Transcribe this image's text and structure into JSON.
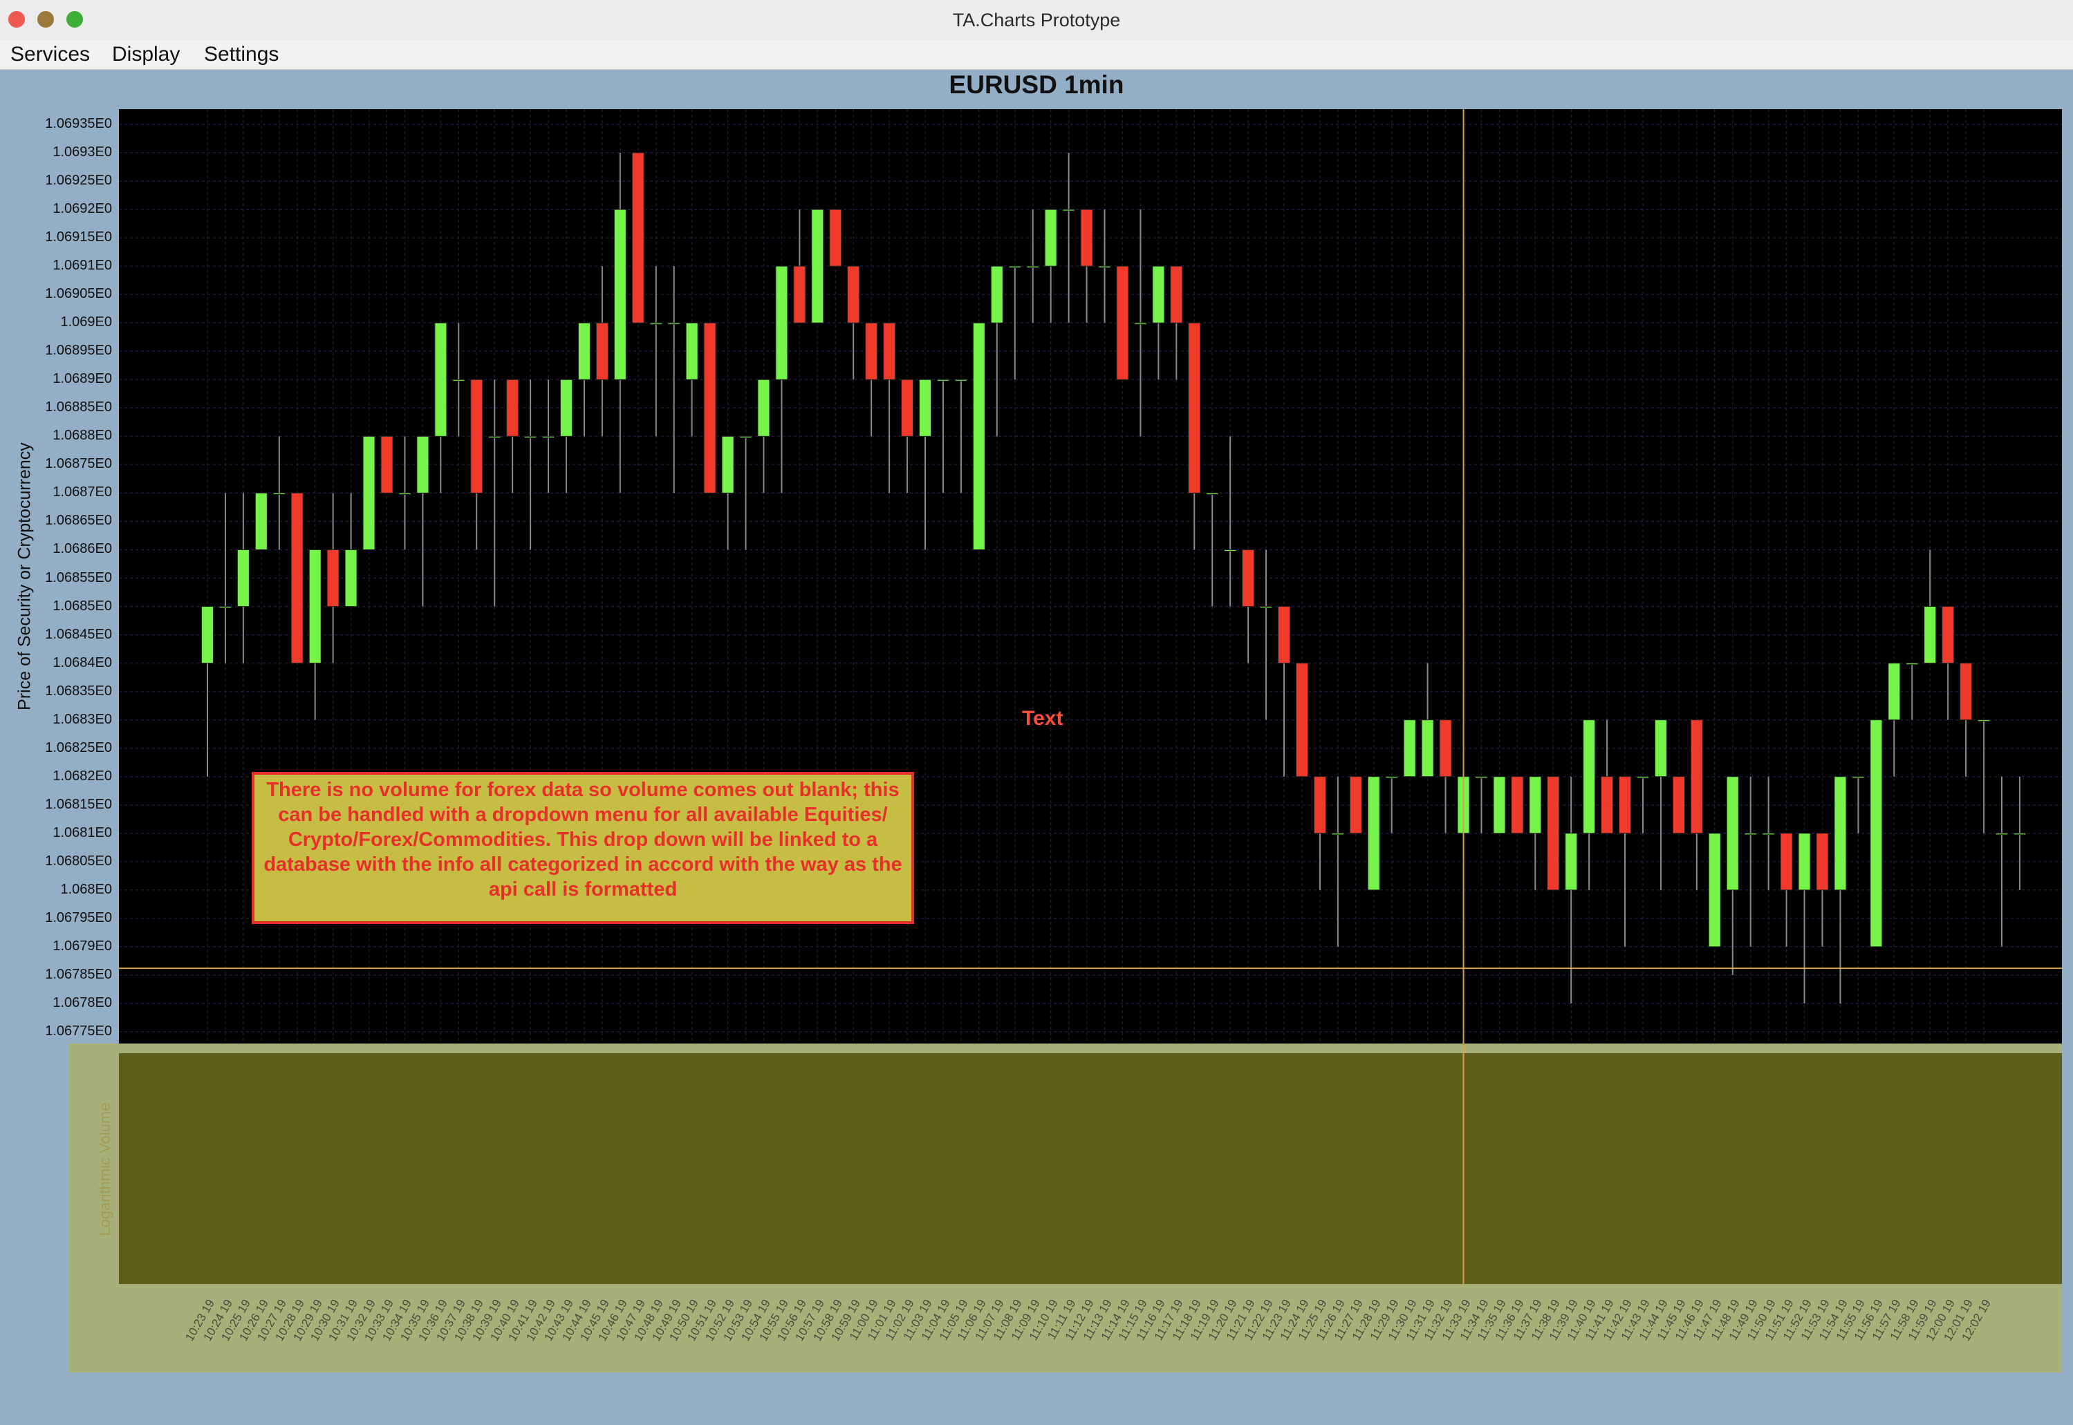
{
  "window": {
    "title": "TA.Charts Prototype"
  },
  "menu": {
    "items": [
      "Services",
      "Display",
      "Settings"
    ]
  },
  "chart_title": "EURUSD 1min",
  "annotation_text": "Text",
  "note": "There is no volume for forex data so volume comes out blank; this can be handled with a dropdown menu for all available Equities/ Crypto/Forex/Commodities. This drop down will be linked to a database with the info all categorized in accord with the way as the api call is formatted",
  "colors": {
    "up": "#77f44a",
    "down": "#f03b2c",
    "crosshair": "#d6a24a",
    "plot_bg": "#000000",
    "volume_bg": "#5e5d1a"
  },
  "chart_data": {
    "type": "candlestick",
    "title": "EURUSD 1min",
    "ylabel": "Price of Security or Cryptocurrency",
    "volume_label": "Logarithmic Volume",
    "ylim": [
      1.06775,
      1.06935
    ],
    "ytick_labels": [
      "1.06935E0",
      "1.0693E0",
      "1.06925E0",
      "1.0692E0",
      "1.06915E0",
      "1.0691E0",
      "1.06905E0",
      "1.069E0",
      "1.06895E0",
      "1.0689E0",
      "1.06885E0",
      "1.0688E0",
      "1.06875E0",
      "1.0687E0",
      "1.06865E0",
      "1.0686E0",
      "1.06855E0",
      "1.0685E0",
      "1.06845E0",
      "1.0684E0",
      "1.06835E0",
      "1.0683E0",
      "1.06825E0",
      "1.0682E0",
      "1.06815E0",
      "1.0681E0",
      "1.06805E0",
      "1.068E0",
      "1.06795E0",
      "1.0679E0",
      "1.06785E0",
      "1.0678E0",
      "1.06775E0"
    ],
    "ytick_values": [
      1.06935,
      1.0693,
      1.06925,
      1.0692,
      1.06915,
      1.0691,
      1.06905,
      1.069,
      1.06895,
      1.0689,
      1.06885,
      1.0688,
      1.06875,
      1.0687,
      1.06865,
      1.0686,
      1.06855,
      1.0685,
      1.06845,
      1.0684,
      1.06835,
      1.0683,
      1.06825,
      1.0682,
      1.06815,
      1.0681,
      1.06805,
      1.068,
      1.06795,
      1.0679,
      1.06785,
      1.0678,
      1.06775
    ],
    "xtick_labels": [
      "10:23 19",
      "10:24 19",
      "10:25 19",
      "10:26 19",
      "10:27 19",
      "10:28 19",
      "10:29 19",
      "10:30 19",
      "10:31 19",
      "10:32 19",
      "10:33 19",
      "10:34 19",
      "10:35 19",
      "10:36 19",
      "10:37 19",
      "10:38 19",
      "10:39 19",
      "10:40 19",
      "10:41 19",
      "10:42 19",
      "10:43 19",
      "10:44 19",
      "10:45 19",
      "10:46 19",
      "10:47 19",
      "10:48 19",
      "10:49 19",
      "10:50 19",
      "10:51 19",
      "10:52 19",
      "10:53 19",
      "10:54 19",
      "10:55 19",
      "10:56 19",
      "10:57 19",
      "10:58 19",
      "10:59 19",
      "11:00 19",
      "11:01 19",
      "11:02 19",
      "11:03 19",
      "11:04 19",
      "11:05 19",
      "11:06 19",
      "11:07 19",
      "11:08 19",
      "11:09 19",
      "11:10 19",
      "11:11 19",
      "11:12 19",
      "11:13 19",
      "11:14 19",
      "11:15 19",
      "11:16 19",
      "11:17 19",
      "11:18 19",
      "11:19 19",
      "11:20 19",
      "11:21 19",
      "11:22 19",
      "11:23 19",
      "11:24 19",
      "11:25 19",
      "11:26 19",
      "11:27 19",
      "11:28 19",
      "11:29 19",
      "11:30 19",
      "11:31 19",
      "11:32 19",
      "11:33 19",
      "11:34 19",
      "11:35 19",
      "11:36 19",
      "11:37 19",
      "11:38 19",
      "11:39 19",
      "11:40 19",
      "11:41 19",
      "11:42 19",
      "11:43 19",
      "11:44 19",
      "11:45 19",
      "11:46 19",
      "11:47 19",
      "11:48 19",
      "11:49 19",
      "11:50 19",
      "11:51 19",
      "11:52 19",
      "11:53 19",
      "11:54 19",
      "11:55 19",
      "11:56 19",
      "11:57 19",
      "11:58 19",
      "11:59 19",
      "12:00 19",
      "12:01 19",
      "12:02 19"
    ],
    "candles": [
      {
        "o": 1.0684,
        "h": 1.0685,
        "l": 1.0682,
        "c": 1.0685
      },
      {
        "o": 1.0685,
        "h": 1.0687,
        "l": 1.0684,
        "c": 1.0685
      },
      {
        "o": 1.0685,
        "h": 1.0687,
        "l": 1.0684,
        "c": 1.0686
      },
      {
        "o": 1.0686,
        "h": 1.0687,
        "l": 1.0686,
        "c": 1.0687
      },
      {
        "o": 1.0687,
        "h": 1.0688,
        "l": 1.0686,
        "c": 1.0687
      },
      {
        "o": 1.0687,
        "h": 1.0687,
        "l": 1.0684,
        "c": 1.0684
      },
      {
        "o": 1.0684,
        "h": 1.0686,
        "l": 1.0683,
        "c": 1.0686
      },
      {
        "o": 1.0686,
        "h": 1.0687,
        "l": 1.0684,
        "c": 1.0685
      },
      {
        "o": 1.0685,
        "h": 1.0687,
        "l": 1.0685,
        "c": 1.0686
      },
      {
        "o": 1.0686,
        "h": 1.0688,
        "l": 1.0686,
        "c": 1.0688
      },
      {
        "o": 1.0688,
        "h": 1.0688,
        "l": 1.0687,
        "c": 1.0687
      },
      {
        "o": 1.0687,
        "h": 1.0688,
        "l": 1.0686,
        "c": 1.0687
      },
      {
        "o": 1.0687,
        "h": 1.0688,
        "l": 1.0685,
        "c": 1.0688
      },
      {
        "o": 1.0688,
        "h": 1.069,
        "l": 1.0687,
        "c": 1.069
      },
      {
        "o": 1.0689,
        "h": 1.069,
        "l": 1.0688,
        "c": 1.0689
      },
      {
        "o": 1.0689,
        "h": 1.0689,
        "l": 1.0686,
        "c": 1.0687
      },
      {
        "o": 1.0688,
        "h": 1.0689,
        "l": 1.0685,
        "c": 1.0688
      },
      {
        "o": 1.0689,
        "h": 1.0689,
        "l": 1.0687,
        "c": 1.0688
      },
      {
        "o": 1.0688,
        "h": 1.0689,
        "l": 1.0686,
        "c": 1.0688
      },
      {
        "o": 1.0688,
        "h": 1.0689,
        "l": 1.0687,
        "c": 1.0688
      },
      {
        "o": 1.0688,
        "h": 1.0689,
        "l": 1.0687,
        "c": 1.0689
      },
      {
        "o": 1.0689,
        "h": 1.069,
        "l": 1.0688,
        "c": 1.069
      },
      {
        "o": 1.069,
        "h": 1.0691,
        "l": 1.0688,
        "c": 1.0689
      },
      {
        "o": 1.0689,
        "h": 1.0693,
        "l": 1.0687,
        "c": 1.0692
      },
      {
        "o": 1.0693,
        "h": 1.0693,
        "l": 1.069,
        "c": 1.069
      },
      {
        "o": 1.069,
        "h": 1.0691,
        "l": 1.0688,
        "c": 1.069
      },
      {
        "o": 1.069,
        "h": 1.0691,
        "l": 1.0687,
        "c": 1.069
      },
      {
        "o": 1.0689,
        "h": 1.069,
        "l": 1.0688,
        "c": 1.069
      },
      {
        "o": 1.069,
        "h": 1.069,
        "l": 1.0687,
        "c": 1.0687
      },
      {
        "o": 1.0687,
        "h": 1.0688,
        "l": 1.0686,
        "c": 1.0688
      },
      {
        "o": 1.0688,
        "h": 1.0688,
        "l": 1.0686,
        "c": 1.0688
      },
      {
        "o": 1.0688,
        "h": 1.0689,
        "l": 1.0687,
        "c": 1.0689
      },
      {
        "o": 1.0689,
        "h": 1.0691,
        "l": 1.0687,
        "c": 1.0691
      },
      {
        "o": 1.0691,
        "h": 1.0692,
        "l": 1.069,
        "c": 1.069
      },
      {
        "o": 1.069,
        "h": 1.0692,
        "l": 1.069,
        "c": 1.0692
      },
      {
        "o": 1.0692,
        "h": 1.0692,
        "l": 1.0691,
        "c": 1.0691
      },
      {
        "o": 1.0691,
        "h": 1.0691,
        "l": 1.0689,
        "c": 1.069
      },
      {
        "o": 1.069,
        "h": 1.069,
        "l": 1.0688,
        "c": 1.0689
      },
      {
        "o": 1.069,
        "h": 1.069,
        "l": 1.0687,
        "c": 1.0689
      },
      {
        "o": 1.0689,
        "h": 1.0689,
        "l": 1.0687,
        "c": 1.0688
      },
      {
        "o": 1.0688,
        "h": 1.0689,
        "l": 1.0686,
        "c": 1.0689
      },
      {
        "o": 1.0689,
        "h": 1.0689,
        "l": 1.0687,
        "c": 1.0689
      },
      {
        "o": 1.0689,
        "h": 1.0689,
        "l": 1.0687,
        "c": 1.0689
      },
      {
        "o": 1.0686,
        "h": 1.069,
        "l": 1.0686,
        "c": 1.069
      },
      {
        "o": 1.069,
        "h": 1.0691,
        "l": 1.0688,
        "c": 1.0691
      },
      {
        "o": 1.0691,
        "h": 1.0691,
        "l": 1.0689,
        "c": 1.0691
      },
      {
        "o": 1.0691,
        "h": 1.0692,
        "l": 1.069,
        "c": 1.0691
      },
      {
        "o": 1.0691,
        "h": 1.0692,
        "l": 1.069,
        "c": 1.0692
      },
      {
        "o": 1.0692,
        "h": 1.0693,
        "l": 1.069,
        "c": 1.0692
      },
      {
        "o": 1.0692,
        "h": 1.0692,
        "l": 1.069,
        "c": 1.0691
      },
      {
        "o": 1.0691,
        "h": 1.0692,
        "l": 1.069,
        "c": 1.0691
      },
      {
        "o": 1.0691,
        "h": 1.0691,
        "l": 1.0689,
        "c": 1.0689
      },
      {
        "o": 1.069,
        "h": 1.0692,
        "l": 1.0688,
        "c": 1.069
      },
      {
        "o": 1.069,
        "h": 1.0691,
        "l": 1.0689,
        "c": 1.0691
      },
      {
        "o": 1.0691,
        "h": 1.0691,
        "l": 1.0689,
        "c": 1.069
      },
      {
        "o": 1.069,
        "h": 1.069,
        "l": 1.0686,
        "c": 1.0687
      },
      {
        "o": 1.0687,
        "h": 1.0687,
        "l": 1.0685,
        "c": 1.0687
      },
      {
        "o": 1.0686,
        "h": 1.0688,
        "l": 1.0685,
        "c": 1.0686
      },
      {
        "o": 1.0686,
        "h": 1.0686,
        "l": 1.0684,
        "c": 1.0685
      },
      {
        "o": 1.0685,
        "h": 1.0686,
        "l": 1.0683,
        "c": 1.0685
      },
      {
        "o": 1.0685,
        "h": 1.0685,
        "l": 1.0682,
        "c": 1.0684
      },
      {
        "o": 1.0684,
        "h": 1.0684,
        "l": 1.0682,
        "c": 1.0682
      },
      {
        "o": 1.0682,
        "h": 1.0682,
        "l": 1.068,
        "c": 1.0681
      },
      {
        "o": 1.0681,
        "h": 1.0682,
        "l": 1.0679,
        "c": 1.0681
      },
      {
        "o": 1.0682,
        "h": 1.0682,
        "l": 1.0681,
        "c": 1.0681
      },
      {
        "o": 1.068,
        "h": 1.0682,
        "l": 1.068,
        "c": 1.0682
      },
      {
        "o": 1.0682,
        "h": 1.0682,
        "l": 1.0681,
        "c": 1.0682
      },
      {
        "o": 1.0682,
        "h": 1.0683,
        "l": 1.0682,
        "c": 1.0683
      },
      {
        "o": 1.0682,
        "h": 1.0684,
        "l": 1.0682,
        "c": 1.0683
      },
      {
        "o": 1.0683,
        "h": 1.0683,
        "l": 1.0681,
        "c": 1.0682
      },
      {
        "o": 1.0681,
        "h": 1.0682,
        "l": 1.068,
        "c": 1.0682
      },
      {
        "o": 1.0682,
        "h": 1.0682,
        "l": 1.0681,
        "c": 1.0682
      },
      {
        "o": 1.0681,
        "h": 1.0682,
        "l": 1.0681,
        "c": 1.0682
      },
      {
        "o": 1.0682,
        "h": 1.0682,
        "l": 1.0681,
        "c": 1.0681
      },
      {
        "o": 1.0681,
        "h": 1.0682,
        "l": 1.068,
        "c": 1.0682
      },
      {
        "o": 1.0682,
        "h": 1.0682,
        "l": 1.068,
        "c": 1.068
      },
      {
        "o": 1.068,
        "h": 1.0682,
        "l": 1.0678,
        "c": 1.0681
      },
      {
        "o": 1.0681,
        "h": 1.0683,
        "l": 1.068,
        "c": 1.0683
      },
      {
        "o": 1.0682,
        "h": 1.0683,
        "l": 1.0681,
        "c": 1.0681
      },
      {
        "o": 1.0682,
        "h": 1.0682,
        "l": 1.0679,
        "c": 1.0681
      },
      {
        "o": 1.0682,
        "h": 1.0682,
        "l": 1.0681,
        "c": 1.0682
      },
      {
        "o": 1.0682,
        "h": 1.0683,
        "l": 1.068,
        "c": 1.0683
      },
      {
        "o": 1.0682,
        "h": 1.0682,
        "l": 1.0681,
        "c": 1.0681
      },
      {
        "o": 1.0683,
        "h": 1.0683,
        "l": 1.068,
        "c": 1.0681
      },
      {
        "o": 1.0679,
        "h": 1.0681,
        "l": 1.0679,
        "c": 1.0681
      },
      {
        "o": 1.068,
        "h": 1.0682,
        "l": 1.06785,
        "c": 1.0682
      },
      {
        "o": 1.0681,
        "h": 1.0682,
        "l": 1.0679,
        "c": 1.0681
      },
      {
        "o": 1.0681,
        "h": 1.0682,
        "l": 1.068,
        "c": 1.0681
      },
      {
        "o": 1.0681,
        "h": 1.0681,
        "l": 1.0679,
        "c": 1.068
      },
      {
        "o": 1.068,
        "h": 1.0681,
        "l": 1.0678,
        "c": 1.0681
      },
      {
        "o": 1.0681,
        "h": 1.0681,
        "l": 1.0679,
        "c": 1.068
      },
      {
        "o": 1.068,
        "h": 1.0682,
        "l": 1.0678,
        "c": 1.0682
      },
      {
        "o": 1.0682,
        "h": 1.0682,
        "l": 1.0681,
        "c": 1.0682
      },
      {
        "o": 1.0679,
        "h": 1.0683,
        "l": 1.0679,
        "c": 1.0683
      },
      {
        "o": 1.0683,
        "h": 1.0684,
        "l": 1.0682,
        "c": 1.0684
      },
      {
        "o": 1.0684,
        "h": 1.0684,
        "l": 1.0683,
        "c": 1.0684
      },
      {
        "o": 1.0684,
        "h": 1.0686,
        "l": 1.0684,
        "c": 1.0685
      },
      {
        "o": 1.0685,
        "h": 1.0685,
        "l": 1.0683,
        "c": 1.0684
      },
      {
        "o": 1.0684,
        "h": 1.0684,
        "l": 1.0682,
        "c": 1.0683
      },
      {
        "o": 1.0683,
        "h": 1.0683,
        "l": 1.0681,
        "c": 1.0683
      },
      {
        "o": 1.0681,
        "h": 1.0682,
        "l": 1.0679,
        "c": 1.0681
      },
      {
        "o": 1.0681,
        "h": 1.0682,
        "l": 1.068,
        "c": 1.0681
      }
    ],
    "crosshair": {
      "x": "11:33 19",
      "y": 1.067862
    },
    "grid": true
  }
}
